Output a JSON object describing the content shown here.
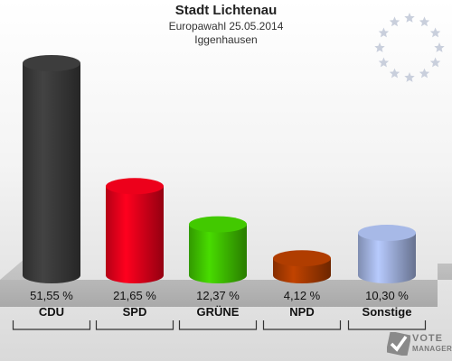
{
  "chart_data": {
    "type": "bar",
    "title": "Stadt Lichtenau",
    "subtitle": [
      "Europawahl 25.05.2014",
      "Iggenhausen"
    ],
    "categories": [
      "CDU",
      "SPD",
      "GRÜNE",
      "NPD",
      "Sonstige"
    ],
    "values": [
      51.55,
      21.65,
      12.37,
      4.12,
      10.3
    ],
    "value_labels": [
      "51,55 %",
      "21,65 %",
      "12,37 %",
      "4,12 %",
      "10,30 %"
    ],
    "colors": [
      "#3a3a3a",
      "#e2001a",
      "#3fbf00",
      "#a83a00",
      "#9fb0dc"
    ],
    "xlabel": "",
    "ylabel": "",
    "ylim": [
      0,
      55
    ],
    "grid": false,
    "legend": "none"
  },
  "logo": {
    "line1": "VOTE",
    "line2": "MANAGER"
  }
}
